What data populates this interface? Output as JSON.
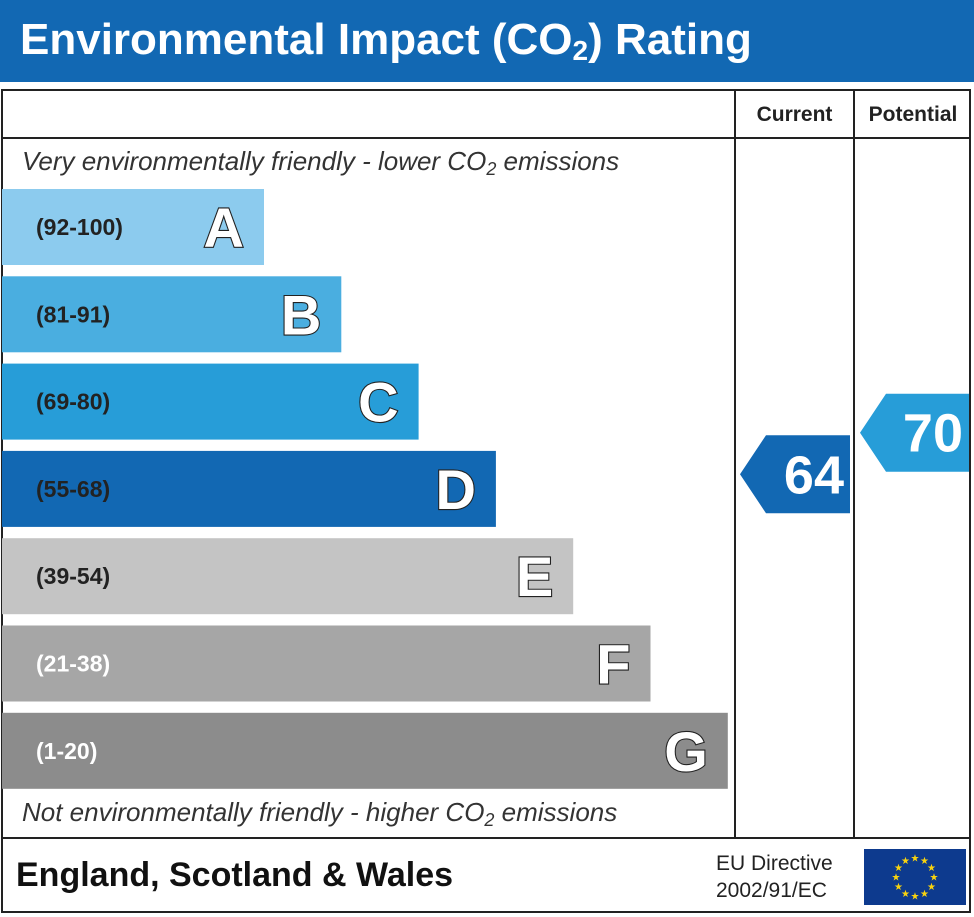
{
  "title": {
    "main": "Environmental Impact (CO",
    "sub": "2",
    "end": ") Rating"
  },
  "columns": {
    "current": "Current",
    "potential": "Potential"
  },
  "captions": {
    "top_pre": "Very environmentally friendly - lower CO",
    "top_sub": "2",
    "top_post": " emissions",
    "bottom_pre": "Not environmentally friendly - higher CO",
    "bottom_sub": "2",
    "bottom_post": " emissions"
  },
  "footer": {
    "region": "England, Scotland & Wales",
    "directive_line1": "EU Directive",
    "directive_line2": "2002/91/EC"
  },
  "colors": {
    "header": "#1268b3",
    "A": "#8ccbee",
    "B": "#4aaee0",
    "C": "#279dd8",
    "D": "#1268b3",
    "E": "#c4c4c4",
    "F": "#a6a6a6",
    "G": "#8c8c8c",
    "flag": "#0d3a8e",
    "star": "#f8d30f"
  },
  "chart_data": {
    "type": "bar",
    "bands": [
      {
        "letter": "A",
        "range": "(92-100)",
        "min": 92,
        "max": 100,
        "color": "#8ccbee",
        "label_color": "#222222"
      },
      {
        "letter": "B",
        "range": "(81-91)",
        "min": 81,
        "max": 91,
        "color": "#4aaee0",
        "label_color": "#222222"
      },
      {
        "letter": "C",
        "range": "(69-80)",
        "min": 69,
        "max": 80,
        "color": "#279dd8",
        "label_color": "#222222"
      },
      {
        "letter": "D",
        "range": "(55-68)",
        "min": 55,
        "max": 68,
        "color": "#1268b3",
        "label_color": "#222222"
      },
      {
        "letter": "E",
        "range": "(39-54)",
        "min": 39,
        "max": 54,
        "color": "#c4c4c4",
        "label_color": "#222222"
      },
      {
        "letter": "F",
        "range": "(21-38)",
        "min": 21,
        "max": 38,
        "color": "#a6a6a6",
        "label_color": "#ffffff"
      },
      {
        "letter": "G",
        "range": "(1-20)",
        "min": 1,
        "max": 20,
        "color": "#8c8c8c",
        "label_color": "#ffffff"
      }
    ],
    "ratings": [
      {
        "name": "Current",
        "value": 64,
        "band": "D",
        "color": "#1268b3"
      },
      {
        "name": "Potential",
        "value": 70,
        "band": "C",
        "color": "#279dd8"
      }
    ]
  }
}
